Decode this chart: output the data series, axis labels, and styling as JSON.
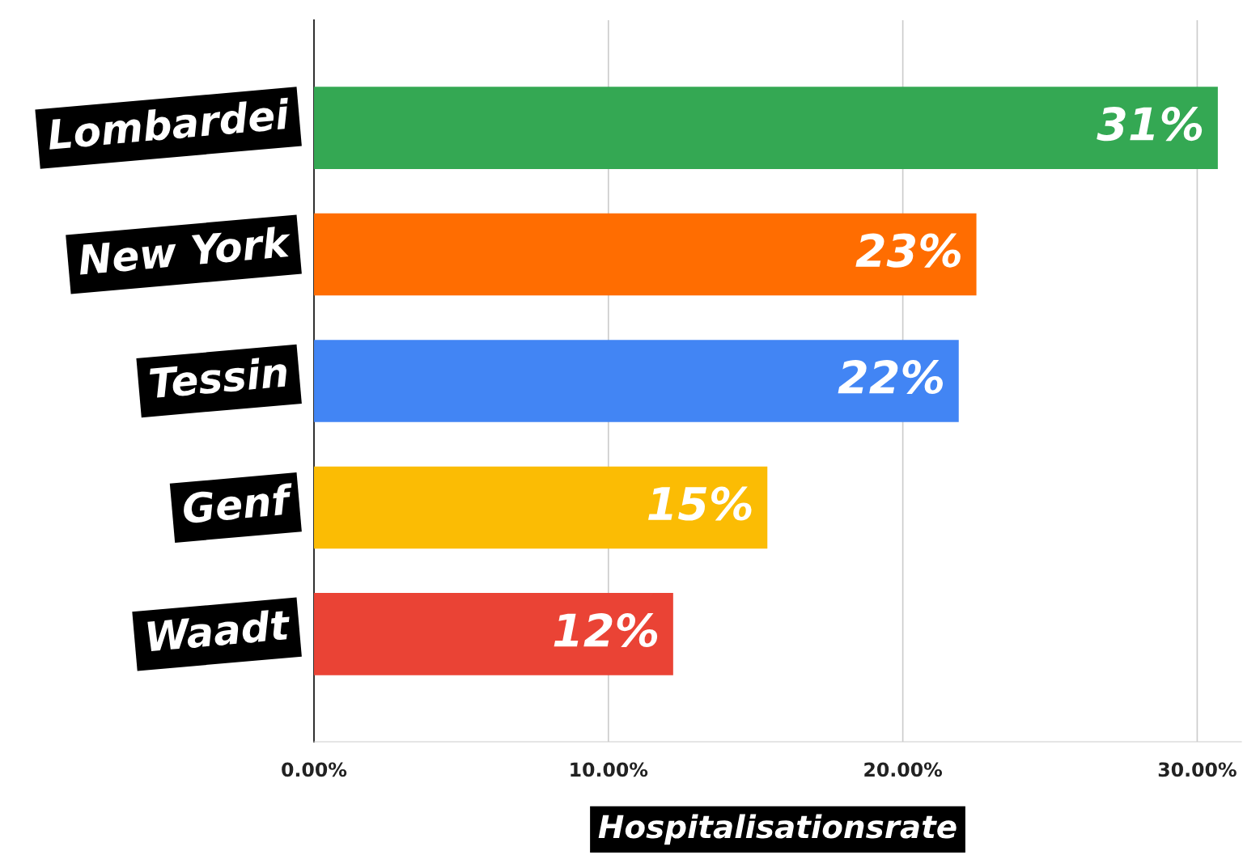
{
  "chart_data": {
    "type": "bar",
    "orientation": "horizontal",
    "xlabel": "Hospitalisationsrate",
    "categories": [
      "Lombardei",
      "New York",
      "Tessin",
      "Genf",
      "Waadt"
    ],
    "values": [
      30.7,
      22.5,
      21.9,
      15.4,
      12.2
    ],
    "colors": [
      "#34a853",
      "#ff6d01",
      "#4285f4",
      "#fbbc04",
      "#ea4335"
    ],
    "value_labels": [
      "31%",
      "23%",
      "22%",
      "15%",
      "12%"
    ],
    "xlim": [
      0,
      31.5
    ],
    "xticks": [
      {
        "value": 0,
        "label": "0.00%"
      },
      {
        "value": 10,
        "label": "10.00%"
      },
      {
        "value": 20,
        "label": "20.00%"
      },
      {
        "value": 30,
        "label": "30.00%"
      }
    ],
    "grid": "x"
  }
}
